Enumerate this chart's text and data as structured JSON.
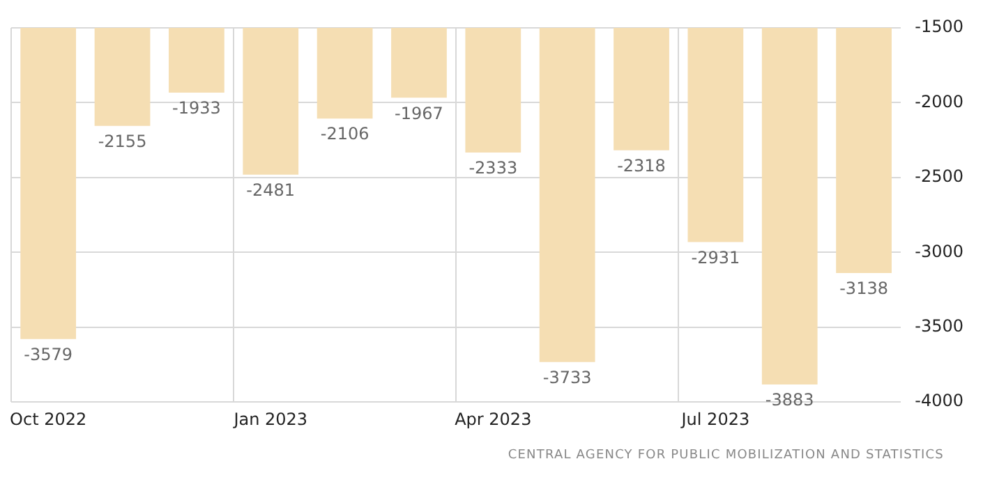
{
  "chart_data": {
    "type": "bar",
    "categories": [
      "Oct 2022",
      null,
      null,
      "Jan 2023",
      null,
      null,
      "Apr 2023",
      null,
      null,
      "Jul 2023",
      null,
      null
    ],
    "values": [
      -3579,
      -2155,
      -1933,
      -2481,
      -2106,
      -1967,
      -2333,
      -3733,
      -2318,
      -2931,
      -3883,
      -3138
    ],
    "color": "#f5deb3",
    "ylim": [
      -4000,
      -1500
    ],
    "yticks": [
      -4000,
      -3500,
      -3000,
      -2500,
      -2000,
      -1500
    ],
    "grid": true,
    "data_labels": true,
    "annotations": [
      "CENTRAL AGENCY FOR PUBLIC MOBILIZATION AND STATISTICS"
    ]
  }
}
